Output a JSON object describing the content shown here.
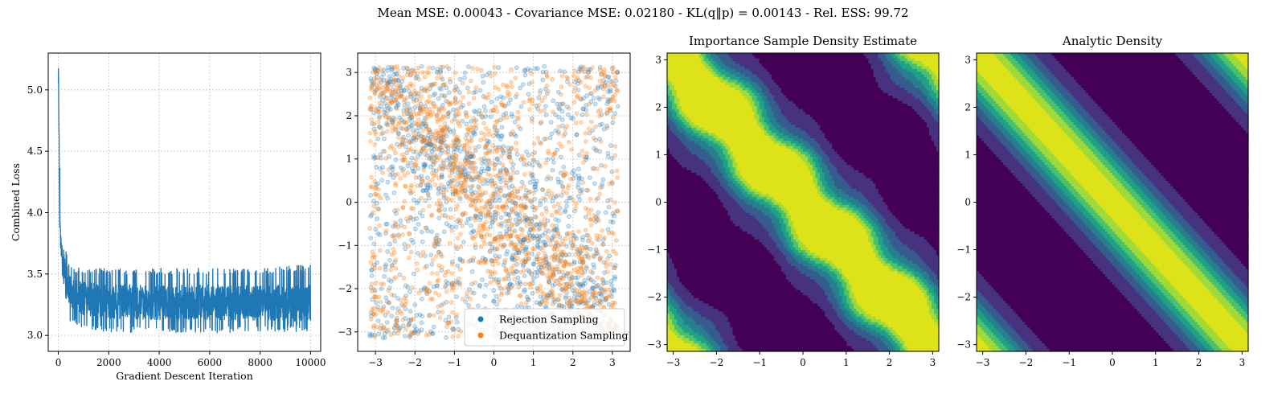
{
  "suptitle": "Mean MSE: 0.00043 - Covariance MSE: 0.02180 - KL(q‖p) = 0.00143 - Rel. ESS: 99.72",
  "chart_data": [
    {
      "type": "line",
      "title": "",
      "xlabel": "Gradient Descent Iteration",
      "ylabel": "Combined Loss",
      "xlim": [
        -400,
        10400
      ],
      "ylim": [
        2.87,
        5.3
      ],
      "xticks": [
        0,
        2000,
        4000,
        6000,
        8000,
        10000
      ],
      "xtick_labels": [
        "0",
        "2000",
        "4000",
        "6000",
        "8000",
        "10000"
      ],
      "yticks": [
        3.0,
        3.5,
        4.0,
        4.5,
        5.0
      ],
      "ytick_labels": [
        "3.0",
        "3.5",
        "4.0",
        "4.5",
        "5.0"
      ],
      "grid": true,
      "series": [
        {
          "color": "#1f77b4",
          "x": [
            0,
            20,
            40,
            60,
            80,
            100,
            150,
            200,
            300,
            400,
            500,
            700,
            1000,
            2000,
            4000,
            6000,
            8000,
            10000
          ],
          "y": [
            5.18,
            4.95,
            4.25,
            4.05,
            3.8,
            3.72,
            3.62,
            3.55,
            3.45,
            3.4,
            3.35,
            3.32,
            3.3,
            3.28,
            3.27,
            3.27,
            3.26,
            3.26
          ],
          "band_low": [
            5.05,
            4.6,
            4.0,
            3.6,
            3.45,
            3.38,
            3.3,
            3.2,
            3.15,
            3.12,
            3.1,
            3.08,
            3.05,
            3.02,
            3.02,
            3.02,
            3.02,
            3.03
          ],
          "band_high": [
            5.2,
            5.18,
            4.6,
            4.45,
            4.1,
            3.85,
            3.75,
            3.72,
            3.7,
            3.62,
            3.58,
            3.56,
            3.55,
            3.55,
            3.55,
            3.55,
            3.55,
            3.58
          ]
        }
      ]
    },
    {
      "type": "scatter",
      "title": "",
      "xlim": [
        -3.45,
        3.45
      ],
      "ylim": [
        -3.45,
        3.45
      ],
      "xticks": [
        -3,
        -2,
        -1,
        0,
        1,
        2,
        3
      ],
      "xtick_labels": [
        "−3",
        "−2",
        "−1",
        "0",
        "1",
        "2",
        "3"
      ],
      "yticks": [
        -3,
        -2,
        -1,
        0,
        1,
        2,
        3
      ],
      "ytick_labels": [
        "−3",
        "−2",
        "−1",
        "0",
        "1",
        "2",
        "3"
      ],
      "grid": true,
      "legend_position": "lower-right",
      "series": [
        {
          "name": "Rejection Sampling",
          "color": "#1f77b4"
        },
        {
          "name": "Dequantization Sampling",
          "color": "#ff7f0e"
        }
      ],
      "distribution": {
        "domain": [
          -3.14159,
          3.14159
        ],
        "density_ridge": "x + y = 0 (mod 2π)",
        "points_per_series": 1500
      }
    },
    {
      "type": "heatmap",
      "title": "Importance Sample Density Estimate",
      "xlim": [
        -3.14159,
        3.14159
      ],
      "ylim": [
        -3.14159,
        3.14159
      ],
      "xticks": [
        -3,
        -2,
        -1,
        0,
        1,
        2,
        3
      ],
      "xtick_labels": [
        "−3",
        "−2",
        "−1",
        "0",
        "1",
        "2",
        "3"
      ],
      "yticks": [
        -3,
        -2,
        -1,
        0,
        1,
        2,
        3
      ],
      "ytick_labels": [
        "−3",
        "−2",
        "−1",
        "0",
        "1",
        "2",
        "3"
      ],
      "colormap": [
        "#440154",
        "#46327e",
        "#365c8d",
        "#277f8e",
        "#1fa187",
        "#4ac16d",
        "#a0da39",
        "#dde318"
      ],
      "ridge": "x + y = 0 (mod 2π)",
      "density": "filled contours, 8 levels, plateau at peak"
    },
    {
      "type": "heatmap",
      "title": "Analytic Density",
      "xlim": [
        -3.14159,
        3.14159
      ],
      "ylim": [
        -3.14159,
        3.14159
      ],
      "xticks": [
        -3,
        -2,
        -1,
        0,
        1,
        2,
        3
      ],
      "xtick_labels": [
        "−3",
        "−2",
        "−1",
        "0",
        "1",
        "2",
        "3"
      ],
      "yticks": [
        -3,
        -2,
        -1,
        0,
        1,
        2,
        3
      ],
      "ytick_labels": [
        "−3",
        "−2",
        "−1",
        "0",
        "1",
        "2",
        "3"
      ],
      "colormap": [
        "#440154",
        "#46327e",
        "#365c8d",
        "#277f8e",
        "#1fa187",
        "#4ac16d",
        "#a0da39",
        "#dde318"
      ],
      "ridge": "x + y = 0 (mod 2π)",
      "density": "filled contours, 8 levels, smooth peak"
    }
  ]
}
